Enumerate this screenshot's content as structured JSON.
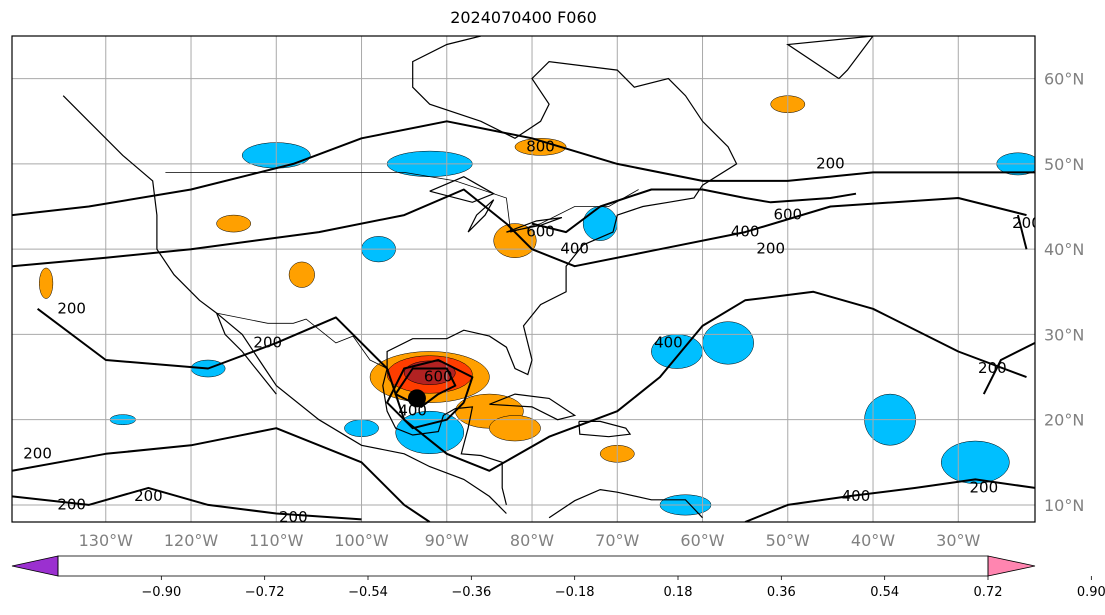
{
  "title": "2024070400 F060",
  "lon_ticks": [
    {
      "label": "130°W",
      "lon": -130
    },
    {
      "label": "120°W",
      "lon": -120
    },
    {
      "label": "110°W",
      "lon": -110
    },
    {
      "label": "100°W",
      "lon": -100
    },
    {
      "label": "90°W",
      "lon": -90
    },
    {
      "label": "80°W",
      "lon": -80
    },
    {
      "label": "70°W",
      "lon": -70
    },
    {
      "label": "60°W",
      "lon": -60
    },
    {
      "label": "50°W",
      "lon": -50
    },
    {
      "label": "40°W",
      "lon": -40
    },
    {
      "label": "30°W",
      "lon": -30
    }
  ],
  "lat_ticks": [
    {
      "label": "60°N",
      "lat": 60
    },
    {
      "label": "50°N",
      "lat": 50
    },
    {
      "label": "40°N",
      "lat": 40
    },
    {
      "label": "30°N",
      "lat": 30
    },
    {
      "label": "20°N",
      "lat": 20
    },
    {
      "label": "10°N",
      "lat": 10
    }
  ],
  "extent": {
    "lon_min": -141,
    "lon_max": -21,
    "lat_min": 8,
    "lat_max": 65
  },
  "colorbar": {
    "ticks": [
      "−0.90",
      "−0.72",
      "−0.54",
      "−0.36",
      "−0.18",
      "0.18",
      "0.36",
      "0.54",
      "0.72",
      "0.90"
    ],
    "colors": [
      "#9b30d0",
      "#00008b",
      "#3a5fcd",
      "#00bfff",
      "#b0e2ff",
      "#ffffff",
      "#ffe88a",
      "#ffa000",
      "#ff3d00",
      "#b22222",
      "#ff85b0"
    ]
  },
  "contour_labels": [
    {
      "text": "800",
      "lon": -79,
      "lat": 52
    },
    {
      "text": "200",
      "lon": -45,
      "lat": 50
    },
    {
      "text": "600",
      "lon": -50,
      "lat": 44
    },
    {
      "text": "400",
      "lon": -55,
      "lat": 42
    },
    {
      "text": "200",
      "lon": -52,
      "lat": 40
    },
    {
      "text": "200",
      "lon": -22,
      "lat": 43
    },
    {
      "text": "400",
      "lon": -75,
      "lat": 40
    },
    {
      "text": "600",
      "lon": -79,
      "lat": 42
    },
    {
      "text": "200",
      "lon": -134,
      "lat": 33
    },
    {
      "text": "200",
      "lon": -111,
      "lat": 29
    },
    {
      "text": "400",
      "lon": -64,
      "lat": 29
    },
    {
      "text": "600",
      "lon": -91,
      "lat": 25
    },
    {
      "text": "400",
      "lon": -94,
      "lat": 21
    },
    {
      "text": "200",
      "lon": -26,
      "lat": 26
    },
    {
      "text": "200",
      "lon": -138,
      "lat": 16
    },
    {
      "text": "200",
      "lon": -134,
      "lat": 10
    },
    {
      "text": "200",
      "lon": -125,
      "lat": 11
    },
    {
      "text": "400",
      "lon": -42,
      "lat": 11
    },
    {
      "text": "200",
      "lon": -27,
      "lat": 12
    },
    {
      "text": "200",
      "lon": -108,
      "lat": 8.5
    }
  ],
  "storm_center": {
    "lon": -93.5,
    "lat": 22.5
  },
  "colors": {
    "grid": "#a9a9a9",
    "land": "#000000",
    "contour": "#000000",
    "tick": "#808080"
  }
}
